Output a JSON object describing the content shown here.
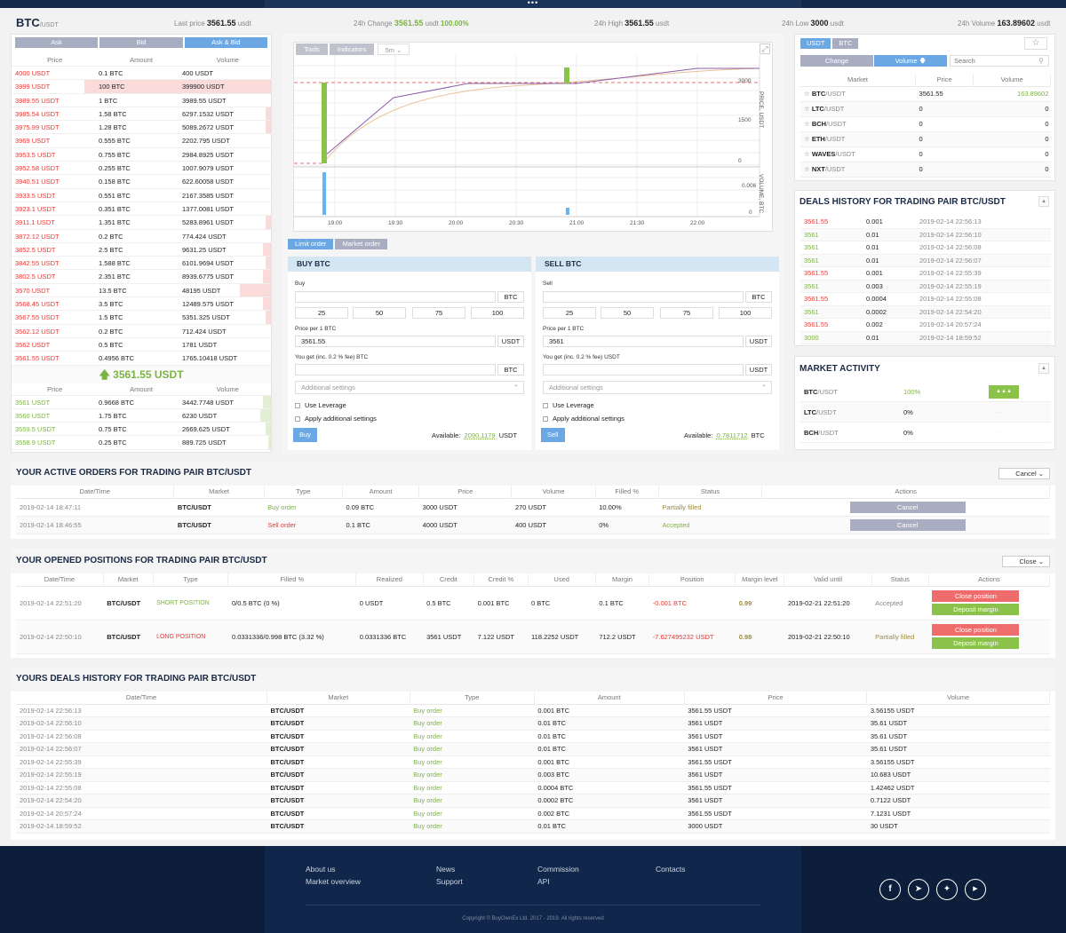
{
  "ticker": {
    "pair": "BTC",
    "quote": "/USDT",
    "last_label": "Last price",
    "last_value": "3561.55",
    "last_unit": "usdt",
    "change_label": "24h Change",
    "change_value": "3561.55",
    "change_unit": "usdt",
    "change_pct": "100.00%",
    "high_label": "24h High",
    "high_value": "3561.55",
    "high_unit": "usdt",
    "low_label": "24h Low",
    "low_value": "3000",
    "low_unit": "usdt",
    "vol_label": "24h Volume",
    "vol_value": "163.89602",
    "vol_unit": "usdt"
  },
  "orderbook": {
    "tabs": [
      "Ask",
      "Bid",
      "Ask & Bid"
    ],
    "headers": [
      "Price",
      "Amount",
      "Volume"
    ],
    "asks": [
      {
        "p": "4000 USDT",
        "a": "0.1 BTC",
        "v": "400 USDT",
        "w": 0
      },
      {
        "p": "3999 USDT",
        "a": "100 BTC",
        "v": "399900 USDT",
        "w": 72
      },
      {
        "p": "3989.55 USDT",
        "a": "1 BTC",
        "v": "3989.55 USDT",
        "w": 0
      },
      {
        "p": "3985.54 USDT",
        "a": "1.58 BTC",
        "v": "6297.1532 USDT",
        "w": 2
      },
      {
        "p": "3975.99 USDT",
        "a": "1.28 BTC",
        "v": "5089.2672 USDT",
        "w": 2
      },
      {
        "p": "3969 USDT",
        "a": "0.555 BTC",
        "v": "2202.795 USDT",
        "w": 0
      },
      {
        "p": "3953.5 USDT",
        "a": "0.755 BTC",
        "v": "2984.8925 USDT",
        "w": 0
      },
      {
        "p": "3952.58 USDT",
        "a": "0.255 BTC",
        "v": "1007.9079 USDT",
        "w": 0
      },
      {
        "p": "3940.51 USDT",
        "a": "0.158 BTC",
        "v": "622.60058 USDT",
        "w": 0
      },
      {
        "p": "3933.5 USDT",
        "a": "0.551 BTC",
        "v": "2167.3585 USDT",
        "w": 0
      },
      {
        "p": "3923.1 USDT",
        "a": "0.351 BTC",
        "v": "1377.0081 USDT",
        "w": 0
      },
      {
        "p": "3911.1 USDT",
        "a": "1.351 BTC",
        "v": "5283.8961 USDT",
        "w": 2
      },
      {
        "p": "3872.12 USDT",
        "a": "0.2 BTC",
        "v": "774.424 USDT",
        "w": 0
      },
      {
        "p": "3852.5 USDT",
        "a": "2.5 BTC",
        "v": "9631.25 USDT",
        "w": 3
      },
      {
        "p": "3842.55 USDT",
        "a": "1.588 BTC",
        "v": "6101.9694 USDT",
        "w": 2
      },
      {
        "p": "3802.5 USDT",
        "a": "2.351 BTC",
        "v": "8939.6775 USDT",
        "w": 3
      },
      {
        "p": "3570 USDT",
        "a": "13.5 BTC",
        "v": "48195 USDT",
        "w": 12
      },
      {
        "p": "3568.45 USDT",
        "a": "3.5 BTC",
        "v": "12489.575 USDT",
        "w": 3
      },
      {
        "p": "3567.55 USDT",
        "a": "1.5 BTC",
        "v": "5351.325 USDT",
        "w": 2
      },
      {
        "p": "3562.12 USDT",
        "a": "0.2 BTC",
        "v": "712.424 USDT",
        "w": 0
      },
      {
        "p": "3562 USDT",
        "a": "0.5 BTC",
        "v": "1781 USDT",
        "w": 0
      },
      {
        "p": "3561.55 USDT",
        "a": "0.4956 BTC",
        "v": "1765.10418 USDT",
        "w": 0
      }
    ],
    "last_price": "3561.55 USDT",
    "bids": [
      {
        "p": "3561 USDT",
        "a": "0.9668 BTC",
        "v": "3442.7748 USDT",
        "w": 3
      },
      {
        "p": "3560 USDT",
        "a": "1.75 BTC",
        "v": "6230 USDT",
        "w": 4
      },
      {
        "p": "3559.5 USDT",
        "a": "0.75 BTC",
        "v": "2669.625 USDT",
        "w": 2
      },
      {
        "p": "3558.9 USDT",
        "a": "0.25 BTC",
        "v": "889.725 USDT",
        "w": 1
      }
    ]
  },
  "chart": {
    "tools_label": "Tools",
    "indicators_label": "Indicators",
    "interval": "5m",
    "price_axis_label": "PRICE, USDT",
    "volume_axis_label": "VOLUME, BTC",
    "price_ticks": [
      "3000",
      "1500",
      "0"
    ],
    "volume_ticks": [
      "0.006",
      "0"
    ],
    "time_ticks": [
      "19:00",
      "19:30",
      "20:00",
      "20:30",
      "21:00",
      "21:30",
      "22:00"
    ]
  },
  "order_tabs": [
    "Limit order",
    "Market order"
  ],
  "buy": {
    "title": "BUY BTC",
    "amount_label": "Buy",
    "amount_currency": "BTC",
    "pcts": [
      "25",
      "50",
      "75",
      "100"
    ],
    "price_label": "Price per 1 BTC",
    "price_value": "3561.55",
    "price_currency": "USDT",
    "get_label": "You get (inc. 0.2 % fee) BTC",
    "get_currency": "BTC",
    "additional": "Additional settings",
    "leverage": "Use Leverage",
    "apply": "Apply additional settings",
    "button": "Buy",
    "available_label": "Available:",
    "available_value": "2090.1179",
    "available_currency": "USDT"
  },
  "sell": {
    "title": "SELL BTC",
    "amount_label": "Sell",
    "amount_currency": "BTC",
    "pcts": [
      "25",
      "50",
      "75",
      "100"
    ],
    "price_label": "Price per 1 BTC",
    "price_value": "3561",
    "price_currency": "USDT",
    "get_label": "You get (inc. 0.2 % fee) USDT",
    "get_currency": "USDT",
    "additional": "Additional settings",
    "leverage": "Use Leverage",
    "apply": "Apply additional settings",
    "button": "Sell",
    "available_label": "Available:",
    "available_value": "0.7811712",
    "available_currency": "BTC"
  },
  "markets": {
    "tabs": [
      "USDT",
      "BTC"
    ],
    "sort": [
      "Change",
      "Volume"
    ],
    "search_placeholder": "Search",
    "headers": [
      "Market",
      "Price",
      "Volume"
    ],
    "rows": [
      {
        "base": "BTC",
        "quote": "/USDT",
        "price": "3561.55",
        "vol": "163.89602"
      },
      {
        "base": "LTC",
        "quote": "/USDT",
        "price": "0",
        "vol": "0"
      },
      {
        "base": "BCH",
        "quote": "/USDT",
        "price": "0",
        "vol": "0"
      },
      {
        "base": "ETH",
        "quote": "/USDT",
        "price": "0",
        "vol": "0"
      },
      {
        "base": "WAVES",
        "quote": "/USDT",
        "price": "0",
        "vol": "0"
      },
      {
        "base": "NXT",
        "quote": "/USDT",
        "price": "0",
        "vol": "0"
      }
    ]
  },
  "deals": {
    "title": "DEALS HISTORY FOR TRADING PAIR BTC/USDT",
    "rows": [
      {
        "p": "3561.55",
        "a": "0.001",
        "t": "2019-02-14 22:56:13",
        "c": "red"
      },
      {
        "p": "3561",
        "a": "0.01",
        "t": "2019-02-14 22:56:10",
        "c": "green"
      },
      {
        "p": "3561",
        "a": "0.01",
        "t": "2019-02-14 22:56:08",
        "c": "green"
      },
      {
        "p": "3561",
        "a": "0.01",
        "t": "2019-02-14 22:56:07",
        "c": "green"
      },
      {
        "p": "3561.55",
        "a": "0.001",
        "t": "2019-02-14 22:55:39",
        "c": "red"
      },
      {
        "p": "3561",
        "a": "0.003",
        "t": "2019-02-14 22:55:19",
        "c": "green"
      },
      {
        "p": "3561.55",
        "a": "0.0004",
        "t": "2019-02-14 22:55:08",
        "c": "red"
      },
      {
        "p": "3561",
        "a": "0.0002",
        "t": "2019-02-14 22:54:20",
        "c": "green"
      },
      {
        "p": "3561.55",
        "a": "0.002",
        "t": "2019-02-14 20:57:24",
        "c": "red"
      },
      {
        "p": "3000",
        "a": "0.01",
        "t": "2019-02-14 18:59:52",
        "c": "green"
      }
    ]
  },
  "activity": {
    "title": "MARKET ACTIVITY",
    "rows": [
      {
        "base": "BTC",
        "quote": "/USDT",
        "pct": "100%",
        "ind": "▲▲▲"
      },
      {
        "base": "LTC",
        "quote": "/USDT",
        "pct": "0%",
        "ind": "- -"
      },
      {
        "base": "BCH",
        "quote": "/USDT",
        "pct": "0%",
        "ind": "-"
      }
    ]
  },
  "active_orders": {
    "title": "YOUR ACTIVE ORDERS FOR TRADING PAIR BTC/USDT",
    "select": "Cancel",
    "headers": [
      "Date/Time",
      "Market",
      "Type",
      "Amount",
      "Price",
      "Volume",
      "Filled %",
      "Status",
      "Actions"
    ],
    "rows": [
      {
        "dt": "2019-02-14 18:47:11",
        "m": "BTC/USDT",
        "type": "Buy order",
        "tc": "green",
        "amt": "0.09 BTC",
        "price": "3000 USDT",
        "vol": "270 USDT",
        "filled": "10.00%",
        "status": "Partially filled",
        "sc": "olive",
        "action": "Cancel"
      },
      {
        "dt": "2019-02-14 18:46:55",
        "m": "BTC/USDT",
        "type": "Sell order",
        "tc": "red",
        "amt": "0.1 BTC",
        "price": "4000 USDT",
        "vol": "400 USDT",
        "filled": "0%",
        "status": "Accepted",
        "sc": "green",
        "action": "Cancel"
      }
    ]
  },
  "positions": {
    "title": "YOUR OPENED POSITIONS FOR TRADING PAIR BTC/USDT",
    "select": "Close",
    "headers": [
      "Date/Time",
      "Market",
      "Type",
      "Filled %",
      "Realized",
      "Credit",
      "Credit %",
      "Used",
      "Margin",
      "Position",
      "Margin level",
      "Valid until",
      "Status",
      "Actions"
    ],
    "rows": [
      {
        "dt": "2019-02-14 22:51:20",
        "m": "BTC/USDT",
        "type": "SHORT POSITION",
        "tc": "green",
        "filled": "0/0.5 BTC (0 %)",
        "real": "0 USDT",
        "credit": "0.5 BTC",
        "creditp": "0.001 BTC",
        "used": "0 BTC",
        "margin": "0.1 BTC",
        "pos": "-0.001 BTC",
        "ml": "0.99",
        "valid": "2019-02-21 22:51:20",
        "status": "Accepted",
        "sc": "grey",
        "a1": "Close position",
        "a2": "Deposit margin"
      },
      {
        "dt": "2019-02-14 22:50:10",
        "m": "BTC/USDT",
        "type": "LONG POSITION",
        "tc": "red",
        "filled": "0.0331336/0.998 BTC (3.32 %)",
        "real": "0.0331336 BTC",
        "credit": "3561 USDT",
        "creditp": "7.122 USDT",
        "used": "118.2252 USDT",
        "margin": "712.2 USDT",
        "pos": "-7.627495232 USDT",
        "ml": "0.98",
        "valid": "2019-02-21 22:50:10",
        "status": "Partially filled",
        "sc": "olive",
        "a1": "Close position",
        "a2": "Deposit margin"
      }
    ]
  },
  "my_deals": {
    "title": "YOURS DEALS HISTORY FOR TRADING PAIR BTC/USDT",
    "headers": [
      "Date/Time",
      "Market",
      "Type",
      "Amount",
      "Price",
      "Volume"
    ],
    "rows": [
      {
        "dt": "2019-02-14 22:56:13",
        "m": "BTC/USDT",
        "type": "Buy order",
        "amt": "0.001 BTC",
        "price": "3561.55 USDT",
        "vol": "3.56155 USDT"
      },
      {
        "dt": "2019-02-14 22:56:10",
        "m": "BTC/USDT",
        "type": "Buy order",
        "amt": "0.01 BTC",
        "price": "3561 USDT",
        "vol": "35.61 USDT"
      },
      {
        "dt": "2019-02-14 22:56:08",
        "m": "BTC/USDT",
        "type": "Buy order",
        "amt": "0.01 BTC",
        "price": "3561 USDT",
        "vol": "35.61 USDT"
      },
      {
        "dt": "2019-02-14 22:56:07",
        "m": "BTC/USDT",
        "type": "Buy order",
        "amt": "0.01 BTC",
        "price": "3561 USDT",
        "vol": "35.61 USDT"
      },
      {
        "dt": "2019-02-14 22:55:39",
        "m": "BTC/USDT",
        "type": "Buy order",
        "amt": "0.001 BTC",
        "price": "3561.55 USDT",
        "vol": "3.56155 USDT"
      },
      {
        "dt": "2019-02-14 22:55:19",
        "m": "BTC/USDT",
        "type": "Buy order",
        "amt": "0.003 BTC",
        "price": "3561 USDT",
        "vol": "10.683 USDT"
      },
      {
        "dt": "2019-02-14 22:55:08",
        "m": "BTC/USDT",
        "type": "Buy order",
        "amt": "0.0004 BTC",
        "price": "3561.55 USDT",
        "vol": "1.42462 USDT"
      },
      {
        "dt": "2019-02-14 22:54:20",
        "m": "BTC/USDT",
        "type": "Buy order",
        "amt": "0.0002 BTC",
        "price": "3561 USDT",
        "vol": "0.7122 USDT"
      },
      {
        "dt": "2019-02-14 20:57:24",
        "m": "BTC/USDT",
        "type": "Buy order",
        "amt": "0.002 BTC",
        "price": "3561.55 USDT",
        "vol": "7.1231 USDT"
      },
      {
        "dt": "2019-02-14 18:59:52",
        "m": "BTC/USDT",
        "type": "Buy order",
        "amt": "0.01 BTC",
        "price": "3000 USDT",
        "vol": "30 USDT"
      }
    ]
  },
  "footer": {
    "col1": [
      "About us",
      "Market overview"
    ],
    "col2": [
      "News",
      "Support"
    ],
    "col3": [
      "Commission",
      "API"
    ],
    "col4": [
      "Contacts"
    ],
    "copyright": "Copyright © BuyOwnEx Ltd. 2017 - 2019. All rights reserved",
    "social": [
      "facebook-icon",
      "telegram-icon",
      "twitter-icon",
      "youtube-icon"
    ]
  },
  "colors": {
    "accent": "#6aa7e3",
    "navy": "#13294b",
    "green": "#7cb342",
    "red": "#e53935",
    "tab": "#a9adc1"
  }
}
